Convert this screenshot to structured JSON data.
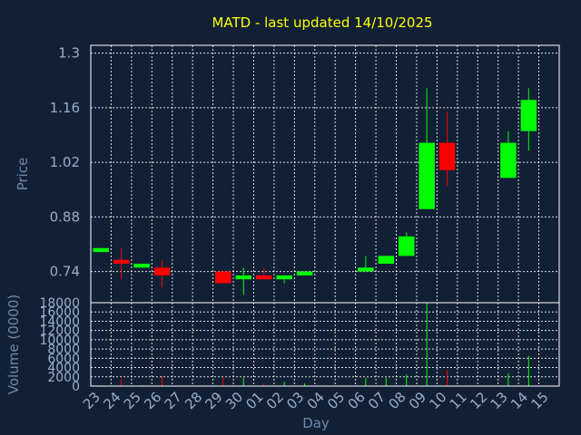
{
  "chart_data": {
    "type": "candlestick",
    "title": "MATD - last updated 14/10/2025",
    "xlabel": "Day",
    "ylabel_price": "Price",
    "ylabel_volume": "Volume (0000)",
    "x_ticks": [
      "23",
      "24",
      "25",
      "26",
      "27",
      "28",
      "29",
      "30",
      "01",
      "02",
      "03",
      "04",
      "05",
      "06",
      "07",
      "08",
      "09",
      "10",
      "11",
      "12",
      "13",
      "14",
      "15"
    ],
    "price_ticks": [
      "1.3",
      "1.16",
      "1.02",
      "0.88",
      "0.74"
    ],
    "price_tick_values": [
      1.3,
      1.16,
      1.02,
      0.88,
      0.74
    ],
    "price_ylim": [
      0.66,
      1.32
    ],
    "volume_ticks": [
      "18000",
      "16000",
      "14000",
      "12000",
      "10000",
      "8000",
      "6000",
      "4000",
      "2000",
      "0"
    ],
    "volume_tick_values": [
      18000,
      16000,
      14000,
      12000,
      10000,
      8000,
      6000,
      4000,
      2000,
      0
    ],
    "volume_ylim": [
      0,
      18000
    ],
    "grid": true,
    "colors": {
      "up": "#00ff00",
      "down": "#ff0000",
      "background": "#112035",
      "plot_border": "#ffffff",
      "grid": "#ffffff",
      "title": "#ffff00",
      "ticks": "#99aec8"
    },
    "candles": [
      {
        "day": "23",
        "open": 0.79,
        "high": 0.8,
        "low": 0.79,
        "close": 0.8,
        "volume": 150
      },
      {
        "day": "24",
        "open": 0.77,
        "high": 0.8,
        "low": 0.72,
        "close": 0.76,
        "volume": 1500
      },
      {
        "day": "25",
        "open": 0.75,
        "high": 0.76,
        "low": 0.75,
        "close": 0.76,
        "volume": 200
      },
      {
        "day": "26",
        "open": 0.75,
        "high": 0.77,
        "low": 0.7,
        "close": 0.73,
        "volume": 2200
      },
      {
        "day": "29",
        "open": 0.74,
        "high": 0.74,
        "low": 0.71,
        "close": 0.71,
        "volume": 2000
      },
      {
        "day": "30",
        "open": 0.72,
        "high": 0.75,
        "low": 0.68,
        "close": 0.73,
        "volume": 1800
      },
      {
        "day": "01",
        "open": 0.73,
        "high": 0.75,
        "low": 0.72,
        "close": 0.72,
        "volume": 500
      },
      {
        "day": "02",
        "open": 0.72,
        "high": 0.73,
        "low": 0.71,
        "close": 0.73,
        "volume": 1000
      },
      {
        "day": "03",
        "open": 0.73,
        "high": 0.74,
        "low": 0.73,
        "close": 0.74,
        "volume": 600
      },
      {
        "day": "06",
        "open": 0.74,
        "high": 0.78,
        "low": 0.74,
        "close": 0.75,
        "volume": 1700
      },
      {
        "day": "07",
        "open": 0.76,
        "high": 0.78,
        "low": 0.76,
        "close": 0.78,
        "volume": 1800
      },
      {
        "day": "08",
        "open": 0.78,
        "high": 0.84,
        "low": 0.78,
        "close": 0.83,
        "volume": 2500
      },
      {
        "day": "09",
        "open": 0.9,
        "high": 1.21,
        "low": 0.9,
        "close": 1.07,
        "volume": 18000
      },
      {
        "day": "10",
        "open": 1.07,
        "high": 1.15,
        "low": 0.96,
        "close": 1.0,
        "volume": 3500
      },
      {
        "day": "13",
        "open": 0.98,
        "high": 1.1,
        "low": 0.98,
        "close": 1.07,
        "volume": 2800
      },
      {
        "day": "14",
        "open": 1.1,
        "high": 1.21,
        "low": 1.05,
        "close": 1.18,
        "volume": 6500
      }
    ]
  }
}
